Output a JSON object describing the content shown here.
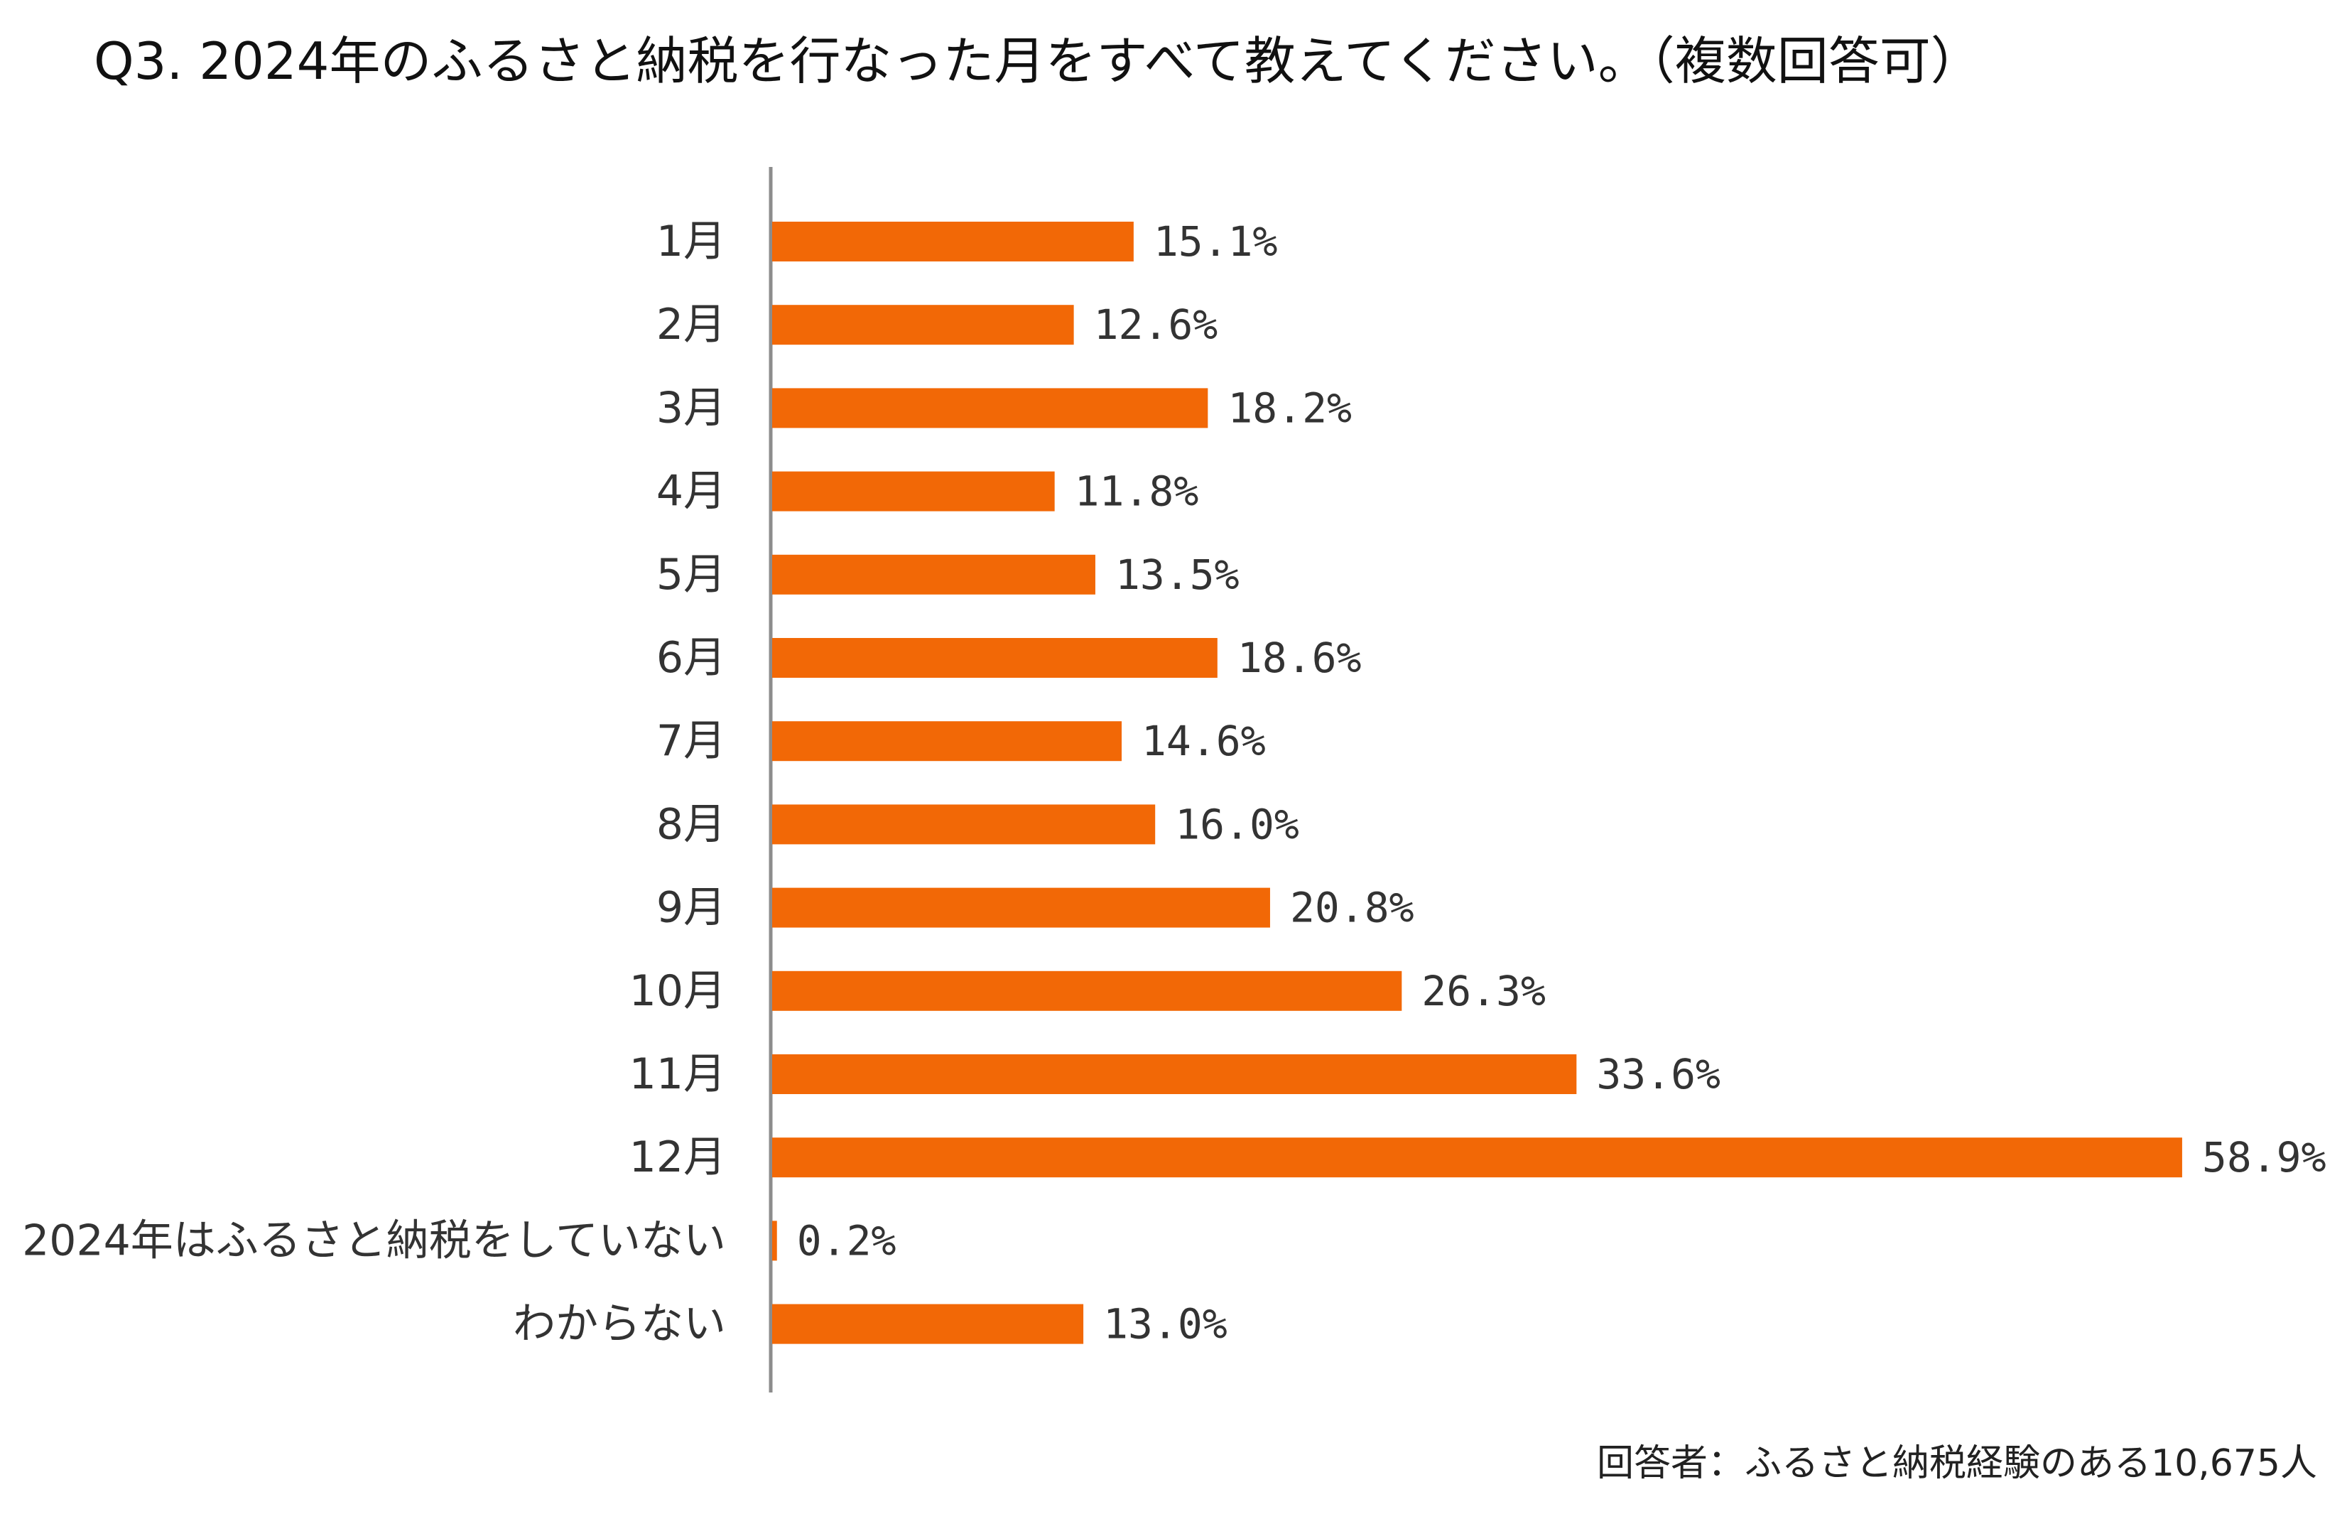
{
  "title": "Q3. 2024年のふるさと納税を行なった月をすべて教えてください。（複数回答可）",
  "footnote": "回答者：ふるさと納税経験のある10,675人",
  "colors": {
    "bar": "#F26806",
    "axis": "#8c8c8c"
  },
  "chart_data": {
    "type": "bar",
    "orientation": "horizontal",
    "title": "Q3. 2024年のふるさと納税を行なった月をすべて教えてください。（複数回答可）",
    "xlabel": "",
    "ylabel": "",
    "unit": "%",
    "xlim": [
      0,
      60
    ],
    "grid": false,
    "categories": [
      "1月",
      "2月",
      "3月",
      "4月",
      "5月",
      "6月",
      "7月",
      "8月",
      "9月",
      "10月",
      "11月",
      "12月",
      "2024年はふるさと納税をしていない",
      "わからない"
    ],
    "values": [
      15.1,
      12.6,
      18.2,
      11.8,
      13.5,
      18.6,
      14.6,
      16.0,
      20.8,
      26.3,
      33.6,
      58.9,
      0.2,
      13.0
    ],
    "value_labels": [
      "15.1%",
      "12.6%",
      "18.2%",
      "11.8%",
      "13.5%",
      "18.6%",
      "14.6%",
      "16.0%",
      "20.8%",
      "26.3%",
      "33.6%",
      "58.9%",
      "0.2%",
      "13.0%"
    ]
  }
}
